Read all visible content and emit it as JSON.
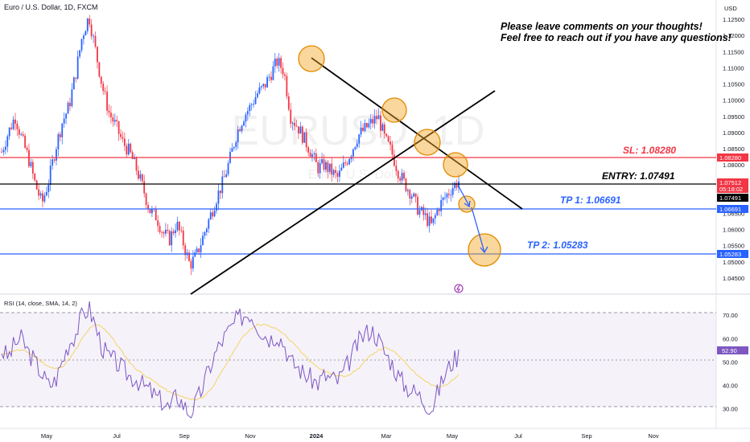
{
  "header": {
    "title": "Euro / U.S. Dollar, 1D, FXCM",
    "currency": "USD"
  },
  "watermark": {
    "symbol": "EURUSD, 1D",
    "name": "Euro / U.S. Dollar"
  },
  "notes": [
    "Please leave comments on your thoughts!",
    "Feel free to reach out if you have any questions!"
  ],
  "levels": {
    "sl": {
      "label": "SL: 1.08280",
      "tag": "1.08280",
      "value": 1.0828,
      "color": "#f23645"
    },
    "entry": {
      "label": "ENTRY: 1.07491",
      "tag": "1.07491",
      "value": 1.07491,
      "color": "#000000"
    },
    "tp1": {
      "label": "TP 1: 1.06691",
      "tag": "1.06691",
      "value": 1.06691,
      "color": "#2962ff"
    },
    "tp2": {
      "label": "TP 2: 1.05283",
      "tag": "1.05283",
      "value": 1.05283,
      "color": "#2962ff"
    }
  },
  "current": {
    "price": "1.07512",
    "countdown": "05:18:02",
    "color": "#f23645"
  },
  "rsi": {
    "label": "RSI (14, close, SMA, 14, 2)",
    "ticks": [
      "70.00",
      "60.00",
      "50.00",
      "40.00",
      "30.00"
    ],
    "current_tag": "52.90"
  },
  "chart_data": [
    {
      "type": "candlestick",
      "title": "Euro / U.S. Dollar, 1D, FXCM",
      "y_ticks": [
        "1.12500",
        "1.12000",
        "1.11500",
        "1.11000",
        "1.10500",
        "1.10000",
        "1.09500",
        "1.09000",
        "1.08500",
        "1.08000",
        "1.07500",
        "1.07000",
        "1.06500",
        "1.06000",
        "1.05500",
        "1.05000",
        "1.04500"
      ],
      "ylim": [
        1.042,
        1.128
      ],
      "x_ticks": [
        "May",
        "Jul",
        "Sep",
        "Nov",
        "2024",
        "Mar",
        "May",
        "Jul",
        "Sep",
        "Nov"
      ],
      "close_series": [
        1.084,
        1.09,
        1.095,
        1.088,
        1.082,
        1.074,
        1.068,
        1.075,
        1.085,
        1.093,
        1.098,
        1.108,
        1.12,
        1.126,
        1.115,
        1.104,
        1.096,
        1.092,
        1.087,
        1.084,
        1.079,
        1.073,
        1.066,
        1.064,
        1.059,
        1.057,
        1.062,
        1.056,
        1.049,
        1.052,
        1.058,
        1.064,
        1.07,
        1.075,
        1.082,
        1.09,
        1.095,
        1.098,
        1.102,
        1.104,
        1.108,
        1.112,
        1.109,
        1.095,
        1.092,
        1.088,
        1.084,
        1.079,
        1.08,
        1.078,
        1.076,
        1.08,
        1.084,
        1.089,
        1.091,
        1.093,
        1.095,
        1.088,
        1.084,
        1.078,
        1.074,
        1.071,
        1.066,
        1.064,
        1.061,
        1.067,
        1.07,
        1.073,
        1.075
      ],
      "trendlines": [
        {
          "from": [
            "2023-10-03",
            1.0448
          ],
          "to": [
            "2024-06-25",
            1.104
          ]
        },
        {
          "from": [
            "2023-12-28",
            1.114
          ],
          "to": [
            "2024-06-20",
            1.0665
          ]
        }
      ],
      "markers": [
        "2023-12-28",
        "2024-03-08",
        "2024-04-01",
        "2024-04-15",
        "2024-05-01",
        "2024-05-17"
      ],
      "arrows": [
        {
          "from": [
            "2024-04-29",
            1.0738
          ],
          "to": [
            "2024-05-07",
            1.0678
          ]
        },
        {
          "from": [
            "2024-05-05",
            1.0672
          ],
          "to": [
            "2024-05-18",
            1.054
          ]
        }
      ]
    },
    {
      "type": "line",
      "title": "RSI (14, close, SMA, 14, 2)",
      "ylim": [
        27.5,
        74.5
      ],
      "y_ticks": [
        70,
        60,
        50,
        40,
        30
      ],
      "bands": {
        "upper": 70,
        "middle": 50,
        "lower": 30
      },
      "series": [
        {
          "values": [
            55,
            52,
            58,
            60,
            54,
            50,
            45,
            40,
            42,
            50,
            58,
            62,
            70,
            73,
            65,
            56,
            52,
            50,
            47,
            44,
            43,
            40,
            38,
            35,
            33,
            30,
            36,
            32,
            28,
            33,
            40,
            48,
            55,
            60,
            64,
            68,
            70,
            71,
            66,
            62,
            60,
            62,
            58,
            50,
            48,
            45,
            43,
            41,
            44,
            43,
            42,
            46,
            52,
            58,
            62,
            64,
            60,
            54,
            50,
            44,
            40,
            38,
            36,
            33,
            30,
            38,
            45,
            50,
            53
          ]
        },
        {
          "values": [
            53,
            54,
            55,
            55,
            54,
            52,
            50,
            48,
            47,
            48,
            51,
            55,
            60,
            64,
            66,
            65,
            62,
            58,
            54,
            50,
            47,
            45,
            43,
            41,
            39,
            37,
            36,
            35,
            34,
            34,
            35,
            38,
            42,
            47,
            52,
            57,
            61,
            64,
            66,
            66,
            65,
            64,
            62,
            59,
            56,
            53,
            50,
            48,
            46,
            45,
            44,
            44,
            45,
            47,
            50,
            53,
            55,
            56,
            55,
            53,
            50,
            47,
            44,
            42,
            40,
            39,
            40,
            42,
            45
          ]
        }
      ]
    }
  ]
}
